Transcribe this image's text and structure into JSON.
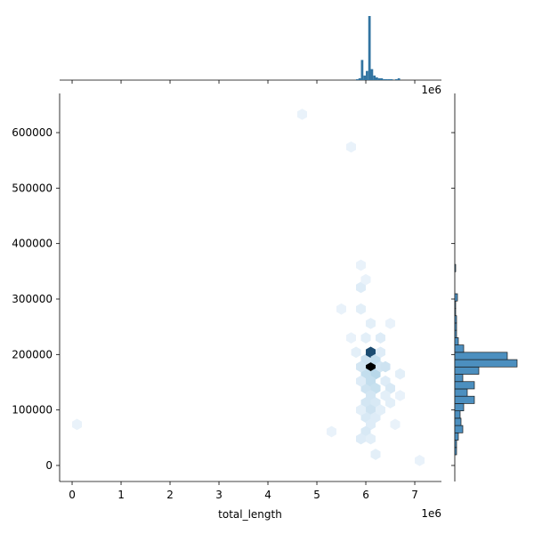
{
  "chart_data": {
    "type": "hexbin",
    "xlabel": "total_length",
    "x_offset_label": "1e6",
    "xlim": [
      -255000,
      7545000
    ],
    "ylim": [
      -28900,
      670600
    ],
    "xticks": [
      {
        "value": 0,
        "label": "0"
      },
      {
        "value": 1000000,
        "label": "1"
      },
      {
        "value": 2000000,
        "label": "2"
      },
      {
        "value": 3000000,
        "label": "3"
      },
      {
        "value": 4000000,
        "label": "4"
      },
      {
        "value": 5000000,
        "label": "5"
      },
      {
        "value": 6000000,
        "label": "6"
      },
      {
        "value": 7000000,
        "label": "7"
      }
    ],
    "yticks": [
      0,
      100000,
      200000,
      300000,
      400000,
      500000,
      600000
    ],
    "cmap": [
      "#eef5fc",
      "#a6cee4",
      "#2e7ebc",
      "#000000"
    ],
    "hexes": {
      "x": [
        6100000,
        6000000,
        6100000,
        6000000,
        6200000,
        6200000,
        6300000,
        6400000,
        5900000,
        6000000,
        6100000,
        6200000,
        6100000,
        6000000,
        6200000,
        6100000,
        6000000,
        6200000,
        6100000,
        6000000,
        6100000,
        5900000,
        6200000,
        6400000,
        6500000,
        6400000,
        6500000,
        6300000,
        6300000,
        5900000,
        5900000,
        6000000,
        6100000,
        5900000,
        5900000,
        6000000,
        5900000,
        6700000,
        6700000,
        6600000,
        5700000,
        5500000,
        5300000,
        4700000,
        5700000,
        100000,
        7100000,
        6500000,
        6300000,
        5800000
      ],
      "y": [
        178000,
        191000,
        204000,
        165000,
        165000,
        191000,
        178000,
        178000,
        178000,
        139000,
        152000,
        139000,
        126000,
        113000,
        113000,
        100000,
        87000,
        87000,
        74000,
        61000,
        48000,
        48000,
        20000,
        152000,
        139000,
        126000,
        113000,
        230000,
        100000,
        152000,
        100000,
        230000,
        256000,
        282000,
        321000,
        335000,
        361000,
        165000,
        126000,
        74000,
        230000,
        282000,
        61000,
        633000,
        574000,
        74000,
        9000,
        256000,
        204000,
        204000
      ],
      "counts": [
        40,
        6,
        32,
        8,
        10,
        8,
        5,
        6,
        5,
        6,
        8,
        7,
        5,
        5,
        4,
        6,
        4,
        3,
        3,
        4,
        2,
        3,
        2,
        3,
        4,
        2,
        2,
        3,
        2,
        3,
        2,
        2,
        2,
        2,
        3,
        1,
        1,
        2,
        1,
        1,
        1,
        1,
        1,
        1,
        1,
        1,
        1,
        1,
        3,
        2
      ]
    },
    "x_marginal": {
      "color": "#3274a1",
      "bins": [
        5800000,
        5850000,
        5900000,
        5950000,
        6000000,
        6050000,
        6100000,
        6150000,
        6200000,
        6250000,
        6300000,
        6350000,
        6400000,
        6450000,
        6500000,
        6550000,
        6600000,
        6650000,
        6700000,
        6750000
      ],
      "counts": [
        5,
        10,
        110,
        25,
        50,
        350,
        60,
        25,
        15,
        10,
        10,
        5,
        5,
        5,
        5,
        0,
        5,
        10,
        0
      ]
    },
    "y_marginal": {
      "color": "#4c8fbf",
      "bins": [
        6000,
        19200,
        32400,
        45600,
        58800,
        72000,
        85200,
        98400,
        111600,
        124800,
        138000,
        151200,
        164400,
        177600,
        190800,
        204000,
        217200,
        230400,
        243600,
        256800,
        270000,
        283200,
        296400,
        309600,
        322800,
        336000,
        349200,
        362400
      ],
      "counts": [
        0,
        10,
        10,
        20,
        45,
        35,
        30,
        50,
        110,
        70,
        110,
        45,
        135,
        350,
        295,
        50,
        20,
        10,
        10,
        10,
        5,
        5,
        15,
        0,
        0,
        0,
        5
      ]
    }
  }
}
